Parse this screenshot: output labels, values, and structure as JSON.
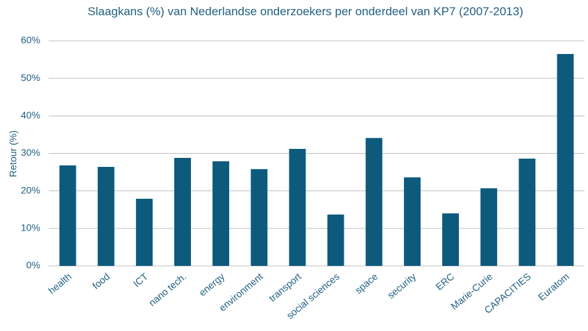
{
  "chart_data": {
    "type": "bar",
    "title": "Slaagkans (%) van Nederlandse onderzoekers per onderdeel van KP7 (2007-2013)",
    "y_label": "Retour (%)",
    "categories": [
      "health",
      "food",
      "ICT",
      "nano tech.",
      "energy",
      "environment",
      "transport",
      "social sciences",
      "space",
      "security",
      "ERC",
      "Marie-Curie",
      "CAPACITIES",
      "Euratom"
    ],
    "values": [
      26.8,
      26.4,
      17.9,
      28.8,
      27.9,
      25.8,
      31.2,
      13.7,
      34.1,
      23.6,
      14.0,
      20.7,
      28.6,
      56.5
    ],
    "color": "#0d5a7c",
    "ylim": [
      0,
      60
    ],
    "yticks": [
      {
        "value": 0,
        "label": "0%"
      },
      {
        "value": 10,
        "label": "10%"
      },
      {
        "value": 20,
        "label": "20%"
      },
      {
        "value": 30,
        "label": "30%"
      },
      {
        "value": 40,
        "label": "40%"
      },
      {
        "value": 50,
        "label": "50%"
      },
      {
        "value": 60,
        "label": "60%"
      }
    ],
    "grid": true
  }
}
